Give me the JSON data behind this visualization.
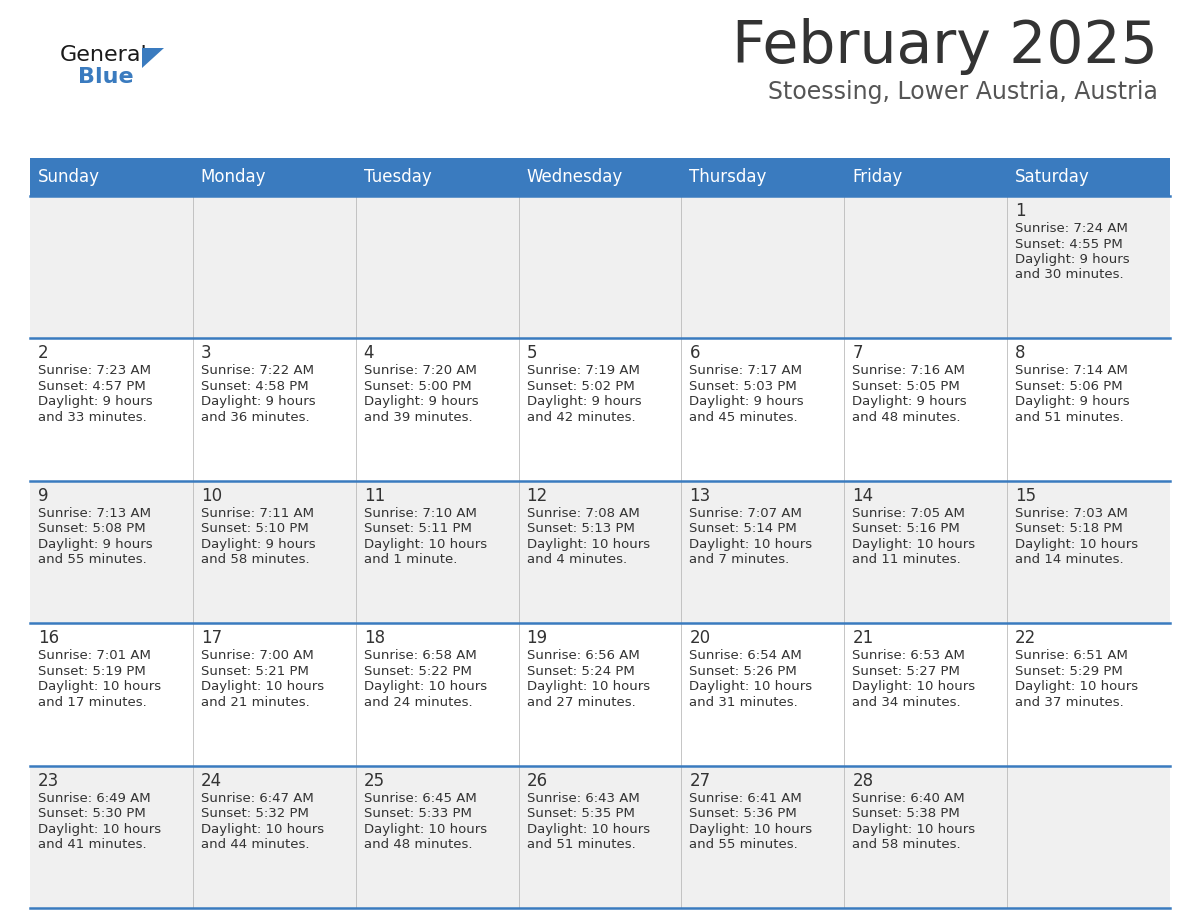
{
  "title": "February 2025",
  "subtitle": "Stoessing, Lower Austria, Austria",
  "days_of_week": [
    "Sunday",
    "Monday",
    "Tuesday",
    "Wednesday",
    "Thursday",
    "Friday",
    "Saturday"
  ],
  "header_bg": "#3a7bbf",
  "header_text": "#ffffff",
  "row_bg_odd": "#f0f0f0",
  "row_bg_even": "#ffffff",
  "cell_border": "#3a7bbf",
  "day_num_color": "#333333",
  "info_color": "#333333",
  "title_color": "#333333",
  "subtitle_color": "#555555",
  "logo_general_color": "#1a1a1a",
  "logo_blue_color": "#3a7bbf",
  "calendar_data": [
    [
      null,
      null,
      null,
      null,
      null,
      null,
      {
        "day": 1,
        "sunrise": "7:24 AM",
        "sunset": "4:55 PM",
        "daylight": "9 hours and 30 minutes."
      }
    ],
    [
      {
        "day": 2,
        "sunrise": "7:23 AM",
        "sunset": "4:57 PM",
        "daylight": "9 hours and 33 minutes."
      },
      {
        "day": 3,
        "sunrise": "7:22 AM",
        "sunset": "4:58 PM",
        "daylight": "9 hours and 36 minutes."
      },
      {
        "day": 4,
        "sunrise": "7:20 AM",
        "sunset": "5:00 PM",
        "daylight": "9 hours and 39 minutes."
      },
      {
        "day": 5,
        "sunrise": "7:19 AM",
        "sunset": "5:02 PM",
        "daylight": "9 hours and 42 minutes."
      },
      {
        "day": 6,
        "sunrise": "7:17 AM",
        "sunset": "5:03 PM",
        "daylight": "9 hours and 45 minutes."
      },
      {
        "day": 7,
        "sunrise": "7:16 AM",
        "sunset": "5:05 PM",
        "daylight": "9 hours and 48 minutes."
      },
      {
        "day": 8,
        "sunrise": "7:14 AM",
        "sunset": "5:06 PM",
        "daylight": "9 hours and 51 minutes."
      }
    ],
    [
      {
        "day": 9,
        "sunrise": "7:13 AM",
        "sunset": "5:08 PM",
        "daylight": "9 hours and 55 minutes."
      },
      {
        "day": 10,
        "sunrise": "7:11 AM",
        "sunset": "5:10 PM",
        "daylight": "9 hours and 58 minutes."
      },
      {
        "day": 11,
        "sunrise": "7:10 AM",
        "sunset": "5:11 PM",
        "daylight": "10 hours and 1 minute."
      },
      {
        "day": 12,
        "sunrise": "7:08 AM",
        "sunset": "5:13 PM",
        "daylight": "10 hours and 4 minutes."
      },
      {
        "day": 13,
        "sunrise": "7:07 AM",
        "sunset": "5:14 PM",
        "daylight": "10 hours and 7 minutes."
      },
      {
        "day": 14,
        "sunrise": "7:05 AM",
        "sunset": "5:16 PM",
        "daylight": "10 hours and 11 minutes."
      },
      {
        "day": 15,
        "sunrise": "7:03 AM",
        "sunset": "5:18 PM",
        "daylight": "10 hours and 14 minutes."
      }
    ],
    [
      {
        "day": 16,
        "sunrise": "7:01 AM",
        "sunset": "5:19 PM",
        "daylight": "10 hours and 17 minutes."
      },
      {
        "day": 17,
        "sunrise": "7:00 AM",
        "sunset": "5:21 PM",
        "daylight": "10 hours and 21 minutes."
      },
      {
        "day": 18,
        "sunrise": "6:58 AM",
        "sunset": "5:22 PM",
        "daylight": "10 hours and 24 minutes."
      },
      {
        "day": 19,
        "sunrise": "6:56 AM",
        "sunset": "5:24 PM",
        "daylight": "10 hours and 27 minutes."
      },
      {
        "day": 20,
        "sunrise": "6:54 AM",
        "sunset": "5:26 PM",
        "daylight": "10 hours and 31 minutes."
      },
      {
        "day": 21,
        "sunrise": "6:53 AM",
        "sunset": "5:27 PM",
        "daylight": "10 hours and 34 minutes."
      },
      {
        "day": 22,
        "sunrise": "6:51 AM",
        "sunset": "5:29 PM",
        "daylight": "10 hours and 37 minutes."
      }
    ],
    [
      {
        "day": 23,
        "sunrise": "6:49 AM",
        "sunset": "5:30 PM",
        "daylight": "10 hours and 41 minutes."
      },
      {
        "day": 24,
        "sunrise": "6:47 AM",
        "sunset": "5:32 PM",
        "daylight": "10 hours and 44 minutes."
      },
      {
        "day": 25,
        "sunrise": "6:45 AM",
        "sunset": "5:33 PM",
        "daylight": "10 hours and 48 minutes."
      },
      {
        "day": 26,
        "sunrise": "6:43 AM",
        "sunset": "5:35 PM",
        "daylight": "10 hours and 51 minutes."
      },
      {
        "day": 27,
        "sunrise": "6:41 AM",
        "sunset": "5:36 PM",
        "daylight": "10 hours and 55 minutes."
      },
      {
        "day": 28,
        "sunrise": "6:40 AM",
        "sunset": "5:38 PM",
        "daylight": "10 hours and 58 minutes."
      },
      null
    ]
  ],
  "fig_width": 11.88,
  "fig_height": 9.18,
  "dpi": 100
}
